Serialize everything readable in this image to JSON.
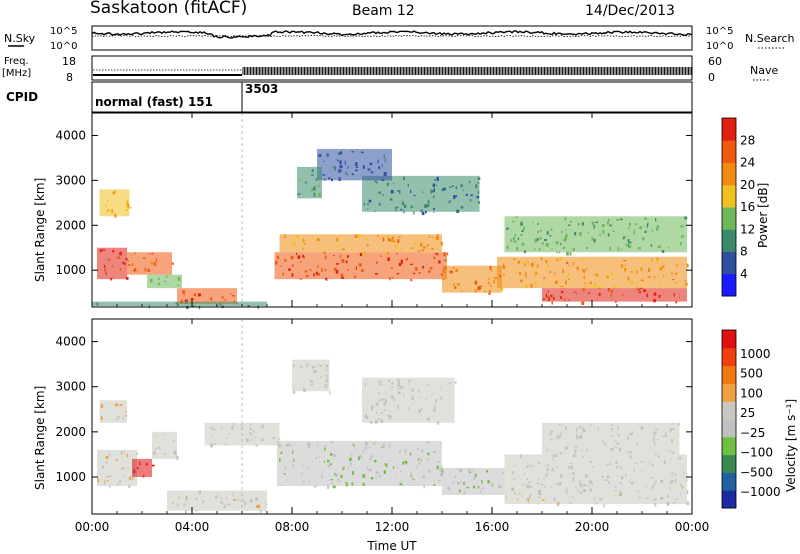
{
  "header": {
    "station": "Saskatoon (fitACF)",
    "beam": "Beam 12",
    "date": "14/Dec/2013"
  },
  "noise_panel": {
    "left_label": "N.Sky",
    "right_label": "N.Search",
    "tick_top_left": "10^5",
    "tick_bot_left": "10^0",
    "tick_top_right": "10^5",
    "tick_bot_right": "10^0"
  },
  "freq_panel": {
    "label_line1": "Freq.",
    "label_line2": "[MHz]",
    "tick_top_left": "18",
    "tick_bot_left": "8",
    "right_label": "Nave",
    "tick_top_right": "60",
    "tick_bot_right": "0"
  },
  "cpid_panel": {
    "label": "CPID",
    "mode_1": "normal (fast) 151",
    "mode_2": "3503"
  },
  "colors": {
    "power": [
      "#1a1aff",
      "#2f50a0",
      "#3a8a6a",
      "#6fb85a",
      "#f0c020",
      "#f08a10",
      "#f05a10",
      "#e02010"
    ],
    "velocity": [
      "#e01010",
      "#f04010",
      "#f07a10",
      "#f0a040",
      "#c8c8c0",
      "#c0c0c0",
      "#6fc040",
      "#3a8a50",
      "#2060a0",
      "#1a2aa0"
    ]
  },
  "chart_data": [
    {
      "type": "heatmap",
      "title": "",
      "xlabel": "",
      "ylabel": "Slant Range [km]",
      "xlim": [
        0,
        24
      ],
      "ylim": [
        180,
        4500
      ],
      "x_ticks": [
        "00:00",
        "04:00",
        "08:00",
        "12:00",
        "16:00",
        "20:00",
        "00:00"
      ],
      "y_ticks": [
        "1000",
        "2000",
        "3000",
        "4000"
      ],
      "colorbar_label": "Power [dB]",
      "colorbar_ticks": [
        "4",
        "8",
        "12",
        "16",
        "20",
        "24",
        "28"
      ],
      "colorbar_range": [
        0,
        30
      ],
      "bands": [
        {
          "x0": 0.2,
          "x1": 1.4,
          "y0": 800,
          "y1": 1500,
          "value": 28
        },
        {
          "x0": 1.4,
          "x1": 3.2,
          "y0": 900,
          "y1": 1400,
          "value": 24
        },
        {
          "x0": 0.3,
          "x1": 1.5,
          "y0": 2200,
          "y1": 2800,
          "value": 18
        },
        {
          "x0": 3.4,
          "x1": 5.8,
          "y0": 250,
          "y1": 600,
          "value": 26
        },
        {
          "x0": 2.2,
          "x1": 3.6,
          "y0": 600,
          "y1": 900,
          "value": 14
        },
        {
          "x0": 7.3,
          "x1": 14.2,
          "y0": 800,
          "y1": 1400,
          "value": 26
        },
        {
          "x0": 7.5,
          "x1": 14.0,
          "y0": 1400,
          "y1": 1800,
          "value": 20
        },
        {
          "x0": 14.0,
          "x1": 16.4,
          "y0": 500,
          "y1": 1100,
          "value": 22
        },
        {
          "x0": 16.2,
          "x1": 23.8,
          "y0": 600,
          "y1": 1300,
          "value": 20
        },
        {
          "x0": 18.0,
          "x1": 23.8,
          "y0": 300,
          "y1": 600,
          "value": 28
        },
        {
          "x0": 10.8,
          "x1": 15.5,
          "y0": 2300,
          "y1": 3100,
          "value": 8
        },
        {
          "x0": 9.0,
          "x1": 12.0,
          "y0": 3000,
          "y1": 3700,
          "value": 6
        },
        {
          "x0": 16.5,
          "x1": 23.8,
          "y0": 1400,
          "y1": 2200,
          "value": 12
        },
        {
          "x0": 8.2,
          "x1": 9.2,
          "y0": 2600,
          "y1": 3300,
          "value": 10
        },
        {
          "x0": 0.0,
          "x1": 7.0,
          "y0": 200,
          "y1": 300,
          "value": 10
        }
      ]
    },
    {
      "type": "heatmap",
      "title": "",
      "xlabel": "Time UT",
      "ylabel": "Slant Range [km]",
      "xlim": [
        0,
        24
      ],
      "ylim": [
        180,
        4500
      ],
      "x_ticks": [
        "00:00",
        "04:00",
        "08:00",
        "12:00",
        "16:00",
        "20:00",
        "00:00"
      ],
      "y_ticks": [
        "1000",
        "2000",
        "3000",
        "4000"
      ],
      "colorbar_label": "Velocity [m s⁻¹]",
      "colorbar_ticks": [
        "1000",
        "500",
        "100",
        "25",
        "−25",
        "−100",
        "−500",
        "−1000"
      ],
      "colorbar_range": [
        -1000,
        1000
      ],
      "bands": [
        {
          "x0": 0.2,
          "x1": 1.8,
          "y0": 800,
          "y1": 1600,
          "value": 120
        },
        {
          "x0": 1.6,
          "x1": 2.4,
          "y0": 1000,
          "y1": 1400,
          "value": 900
        },
        {
          "x0": 2.4,
          "x1": 3.4,
          "y0": 1400,
          "y1": 2000,
          "value": 0
        },
        {
          "x0": 0.3,
          "x1": 1.4,
          "y0": 2200,
          "y1": 2700,
          "value": 150
        },
        {
          "x0": 3.0,
          "x1": 7.0,
          "y0": 250,
          "y1": 700,
          "value": 80
        },
        {
          "x0": 7.4,
          "x1": 14.0,
          "y0": 800,
          "y1": 1800,
          "value": -120
        },
        {
          "x0": 14.0,
          "x1": 16.5,
          "y0": 600,
          "y1": 1200,
          "value": -200
        },
        {
          "x0": 16.5,
          "x1": 23.8,
          "y0": 800,
          "y1": 1500,
          "value": 0
        },
        {
          "x0": 16.5,
          "x1": 23.8,
          "y0": 400,
          "y1": 800,
          "value": 70
        },
        {
          "x0": 10.8,
          "x1": 14.5,
          "y0": 2200,
          "y1": 3200,
          "value": 0
        },
        {
          "x0": 8.0,
          "x1": 9.5,
          "y0": 2900,
          "y1": 3600,
          "value": 0
        },
        {
          "x0": 18.0,
          "x1": 23.5,
          "y0": 1500,
          "y1": 2200,
          "value": 0
        },
        {
          "x0": 4.5,
          "x1": 7.5,
          "y0": 1700,
          "y1": 2200,
          "value": 20
        }
      ]
    }
  ]
}
